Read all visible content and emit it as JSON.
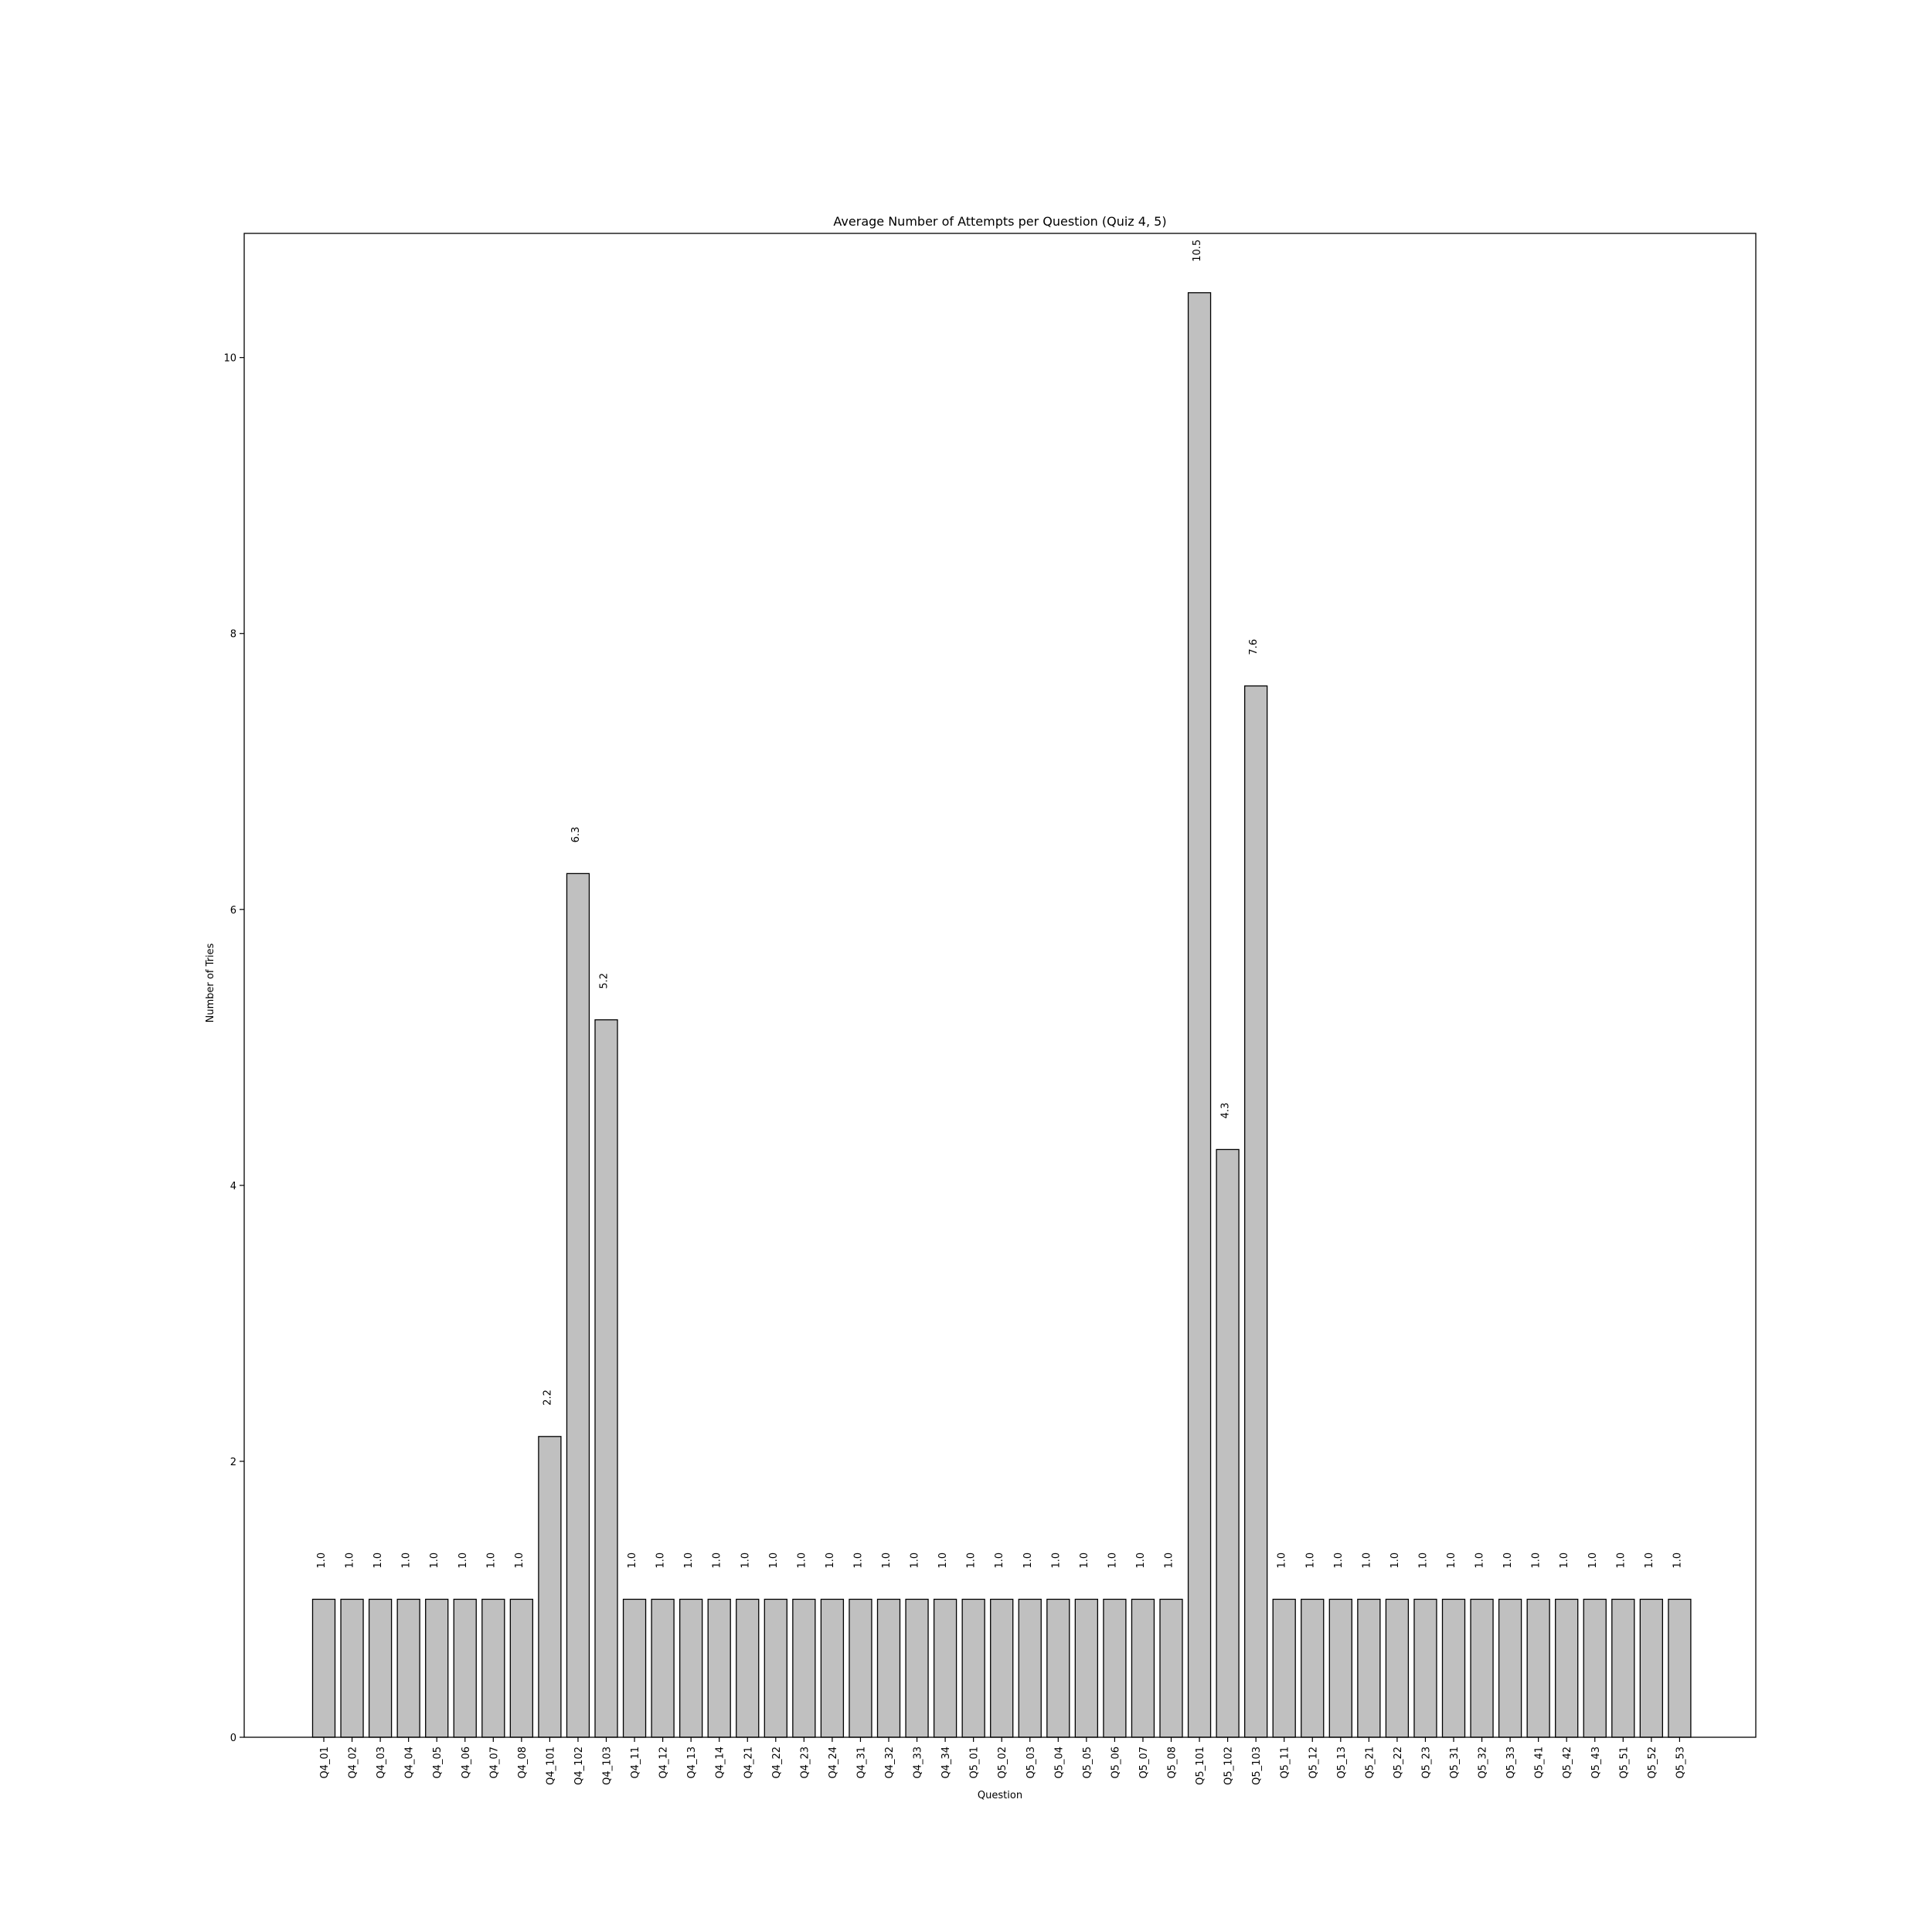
{
  "chart_data": {
    "type": "bar",
    "title": "Average Number of Attempts per Question (Quiz 4, 5)",
    "xlabel": "Question",
    "ylabel": "Number of Tries",
    "ylim": [
      0,
      10.9
    ],
    "yticks": [
      0,
      2,
      4,
      6,
      8,
      10
    ],
    "grid": false,
    "bar_color": "#c0c0c0",
    "edge_color": "#000000",
    "categories": [
      "Q4_01",
      "Q4_02",
      "Q4_03",
      "Q4_04",
      "Q4_05",
      "Q4_06",
      "Q4_07",
      "Q4_08",
      "Q4_101",
      "Q4_102",
      "Q4_103",
      "Q4_11",
      "Q4_12",
      "Q4_13",
      "Q4_14",
      "Q4_21",
      "Q4_22",
      "Q4_23",
      "Q4_24",
      "Q4_31",
      "Q4_32",
      "Q4_33",
      "Q4_34",
      "Q5_01",
      "Q5_02",
      "Q5_03",
      "Q5_04",
      "Q5_05",
      "Q5_06",
      "Q5_07",
      "Q5_08",
      "Q5_101",
      "Q5_102",
      "Q5_103",
      "Q5_11",
      "Q5_12",
      "Q5_13",
      "Q5_21",
      "Q5_22",
      "Q5_23",
      "Q5_31",
      "Q5_32",
      "Q5_33",
      "Q5_41",
      "Q5_42",
      "Q5_43",
      "Q5_51",
      "Q5_52",
      "Q5_53"
    ],
    "values": [
      1.0,
      1.0,
      1.0,
      1.0,
      1.0,
      1.0,
      1.0,
      1.0,
      2.18,
      6.26,
      5.2,
      1.0,
      1.0,
      1.0,
      1.0,
      1.0,
      1.0,
      1.0,
      1.0,
      1.0,
      1.0,
      1.0,
      1.0,
      1.0,
      1.0,
      1.0,
      1.0,
      1.0,
      1.0,
      1.0,
      1.0,
      10.47,
      4.26,
      7.62,
      1.0,
      1.0,
      1.0,
      1.0,
      1.0,
      1.0,
      1.0,
      1.0,
      1.0,
      1.0,
      1.0,
      1.0,
      1.0,
      1.0,
      1.0
    ],
    "value_labels": [
      "1.0",
      "1.0",
      "1.0",
      "1.0",
      "1.0",
      "1.0",
      "1.0",
      "1.0",
      "2.2",
      "6.3",
      "5.2",
      "1.0",
      "1.0",
      "1.0",
      "1.0",
      "1.0",
      "1.0",
      "1.0",
      "1.0",
      "1.0",
      "1.0",
      "1.0",
      "1.0",
      "1.0",
      "1.0",
      "1.0",
      "1.0",
      "1.0",
      "1.0",
      "1.0",
      "1.0",
      "10.5",
      "4.3",
      "7.6",
      "1.0",
      "1.0",
      "1.0",
      "1.0",
      "1.0",
      "1.0",
      "1.0",
      "1.0",
      "1.0",
      "1.0",
      "1.0",
      "1.0",
      "1.0",
      "1.0",
      "1.0"
    ]
  }
}
